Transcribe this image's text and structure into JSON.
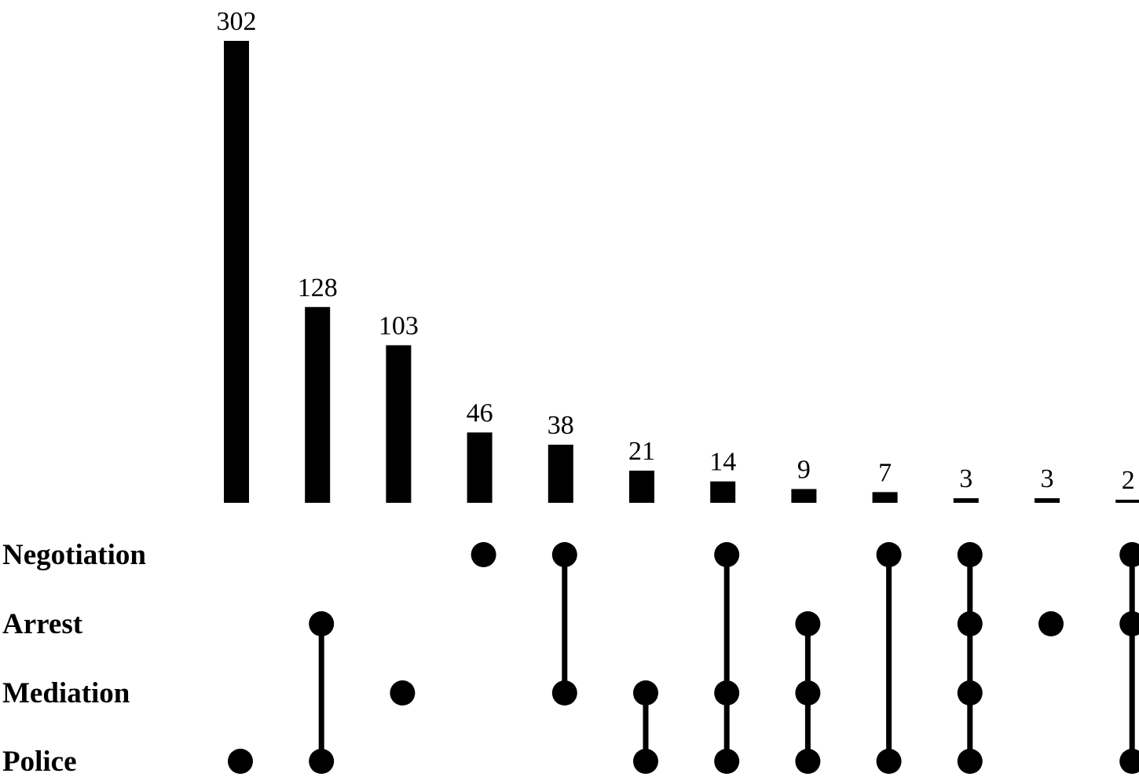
{
  "chart_data": {
    "type": "upset",
    "sets": [
      "Negotiation",
      "Arrest",
      "Mediation",
      "Police"
    ],
    "values": [
      302,
      128,
      103,
      46,
      38,
      21,
      14,
      9,
      7,
      3,
      3,
      2
    ],
    "membership": [
      [
        false,
        false,
        false,
        true
      ],
      [
        false,
        true,
        false,
        true
      ],
      [
        false,
        false,
        true,
        false
      ],
      [
        true,
        false,
        false,
        false
      ],
      [
        true,
        false,
        true,
        false
      ],
      [
        false,
        false,
        true,
        true
      ],
      [
        true,
        false,
        true,
        true
      ],
      [
        false,
        true,
        true,
        true
      ],
      [
        true,
        false,
        false,
        true
      ],
      [
        true,
        true,
        true,
        true
      ],
      [
        false,
        true,
        false,
        false
      ],
      [
        true,
        true,
        false,
        true
      ]
    ],
    "color": "#000000"
  }
}
